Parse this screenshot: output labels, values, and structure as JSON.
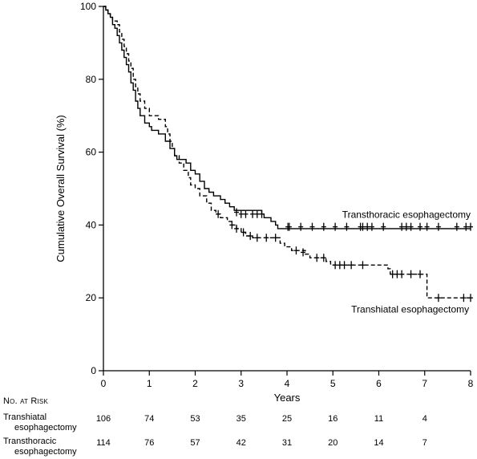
{
  "chart_data": {
    "type": "line",
    "ylabel": "Cumulative Overall Survival (%)",
    "xlabel": "Years",
    "xlim": [
      0,
      8
    ],
    "ylim": [
      0,
      100
    ],
    "x_ticks": [
      "0",
      "1",
      "2",
      "3",
      "4",
      "5",
      "6",
      "7",
      "8"
    ],
    "y_ticks": [
      "0",
      "20",
      "40",
      "60",
      "80",
      "100"
    ],
    "grid": false,
    "series": [
      {
        "name": "Transthoracic esophagectomy",
        "style": "solid",
        "steps": [
          [
            0,
            100
          ],
          [
            0.05,
            99
          ],
          [
            0.1,
            98
          ],
          [
            0.15,
            97
          ],
          [
            0.2,
            95
          ],
          [
            0.25,
            94
          ],
          [
            0.3,
            92
          ],
          [
            0.35,
            90
          ],
          [
            0.4,
            88
          ],
          [
            0.45,
            86
          ],
          [
            0.5,
            84
          ],
          [
            0.55,
            82
          ],
          [
            0.6,
            79
          ],
          [
            0.65,
            77
          ],
          [
            0.7,
            74
          ],
          [
            0.75,
            72
          ],
          [
            0.8,
            70
          ],
          [
            0.9,
            68
          ],
          [
            1.0,
            67
          ],
          [
            1.05,
            66
          ],
          [
            1.2,
            65
          ],
          [
            1.35,
            63
          ],
          [
            1.45,
            61
          ],
          [
            1.55,
            59
          ],
          [
            1.6,
            58
          ],
          [
            1.8,
            57
          ],
          [
            1.9,
            55
          ],
          [
            2.0,
            54
          ],
          [
            2.1,
            52
          ],
          [
            2.2,
            50
          ],
          [
            2.3,
            49
          ],
          [
            2.4,
            48
          ],
          [
            2.55,
            47
          ],
          [
            2.65,
            46
          ],
          [
            2.75,
            45
          ],
          [
            2.85,
            44
          ],
          [
            3.0,
            44
          ],
          [
            3.45,
            43
          ],
          [
            3.5,
            42
          ],
          [
            3.65,
            41
          ],
          [
            3.75,
            40
          ],
          [
            3.8,
            39
          ],
          [
            8.0,
            39
          ]
        ],
        "censored": [
          [
            2.9,
            43.5
          ],
          [
            3.0,
            43
          ],
          [
            3.1,
            43
          ],
          [
            3.25,
            43
          ],
          [
            3.35,
            43
          ],
          [
            3.45,
            43
          ],
          [
            4.02,
            39.5
          ],
          [
            4.05,
            39.5
          ],
          [
            4.3,
            39.5
          ],
          [
            4.55,
            39.5
          ],
          [
            4.8,
            39.5
          ],
          [
            5.05,
            39.5
          ],
          [
            5.3,
            39.5
          ],
          [
            5.6,
            39.5
          ],
          [
            5.65,
            39.5
          ],
          [
            5.75,
            39.5
          ],
          [
            5.85,
            39.5
          ],
          [
            6.1,
            39.5
          ],
          [
            6.5,
            39.5
          ],
          [
            6.6,
            39.5
          ],
          [
            6.7,
            39.5
          ],
          [
            6.9,
            39.5
          ],
          [
            7.05,
            39.5
          ],
          [
            7.3,
            39.5
          ],
          [
            7.7,
            39.5
          ],
          [
            7.9,
            39.5
          ],
          [
            8.0,
            39.5
          ]
        ]
      },
      {
        "name": "Transhiatal esophagectomy",
        "style": "dashed",
        "steps": [
          [
            0,
            100
          ],
          [
            0.05,
            99
          ],
          [
            0.1,
            98
          ],
          [
            0.15,
            97
          ],
          [
            0.2,
            96
          ],
          [
            0.3,
            95
          ],
          [
            0.35,
            93
          ],
          [
            0.4,
            91
          ],
          [
            0.45,
            89
          ],
          [
            0.5,
            87
          ],
          [
            0.55,
            85
          ],
          [
            0.6,
            83
          ],
          [
            0.65,
            80
          ],
          [
            0.7,
            78
          ],
          [
            0.75,
            76
          ],
          [
            0.8,
            74
          ],
          [
            0.9,
            72
          ],
          [
            1.0,
            70
          ],
          [
            1.2,
            69
          ],
          [
            1.35,
            67
          ],
          [
            1.4,
            65
          ],
          [
            1.45,
            63
          ],
          [
            1.5,
            61
          ],
          [
            1.55,
            59
          ],
          [
            1.65,
            57
          ],
          [
            1.75,
            55
          ],
          [
            1.85,
            53
          ],
          [
            1.9,
            51
          ],
          [
            2.0,
            50
          ],
          [
            2.1,
            48
          ],
          [
            2.25,
            46
          ],
          [
            2.35,
            44
          ],
          [
            2.45,
            43
          ],
          [
            2.55,
            42
          ],
          [
            2.7,
            41
          ],
          [
            2.8,
            40
          ],
          [
            2.9,
            39
          ],
          [
            3.0,
            38
          ],
          [
            3.1,
            37
          ],
          [
            3.25,
            36.5
          ],
          [
            3.85,
            35
          ],
          [
            3.95,
            34
          ],
          [
            4.1,
            33
          ],
          [
            4.4,
            32
          ],
          [
            4.5,
            31
          ],
          [
            4.85,
            30
          ],
          [
            4.95,
            29
          ],
          [
            6.2,
            28
          ],
          [
            6.25,
            26.5
          ],
          [
            7.05,
            23
          ],
          [
            7.05,
            20
          ],
          [
            8.0,
            20
          ]
        ],
        "censored": [
          [
            2.5,
            43
          ],
          [
            2.8,
            40
          ],
          [
            2.9,
            39
          ],
          [
            3.05,
            38
          ],
          [
            3.2,
            37
          ],
          [
            3.35,
            36.5
          ],
          [
            3.55,
            36.5
          ],
          [
            3.75,
            36.5
          ],
          [
            4.2,
            33
          ],
          [
            4.35,
            32.5
          ],
          [
            4.65,
            31
          ],
          [
            4.8,
            31
          ],
          [
            5.05,
            29
          ],
          [
            5.15,
            29
          ],
          [
            5.25,
            29
          ],
          [
            5.4,
            29
          ],
          [
            5.65,
            29
          ],
          [
            6.3,
            26.5
          ],
          [
            6.4,
            26.5
          ],
          [
            6.5,
            26.5
          ],
          [
            6.7,
            26.5
          ],
          [
            6.9,
            26.5
          ],
          [
            7.3,
            20
          ],
          [
            7.85,
            20
          ],
          [
            8.0,
            20
          ]
        ]
      }
    ],
    "annotations": [
      {
        "text": "Transthoracic esophagectomy",
        "x": 5.2,
        "y": 42
      },
      {
        "text": "Transhiatal esophagectomy",
        "x": 5.4,
        "y": 16
      }
    ]
  },
  "risk_table": {
    "title": "No. at Risk",
    "rows": [
      {
        "label_line1": "Transhiatal",
        "label_line2": "esophagectomy",
        "values": [
          "106",
          "74",
          "53",
          "35",
          "25",
          "16",
          "11",
          "4"
        ]
      },
      {
        "label_line1": "Transthoracic",
        "label_line2": "esophagectomy",
        "values": [
          "114",
          "76",
          "57",
          "42",
          "31",
          "20",
          "14",
          "7"
        ]
      }
    ]
  }
}
